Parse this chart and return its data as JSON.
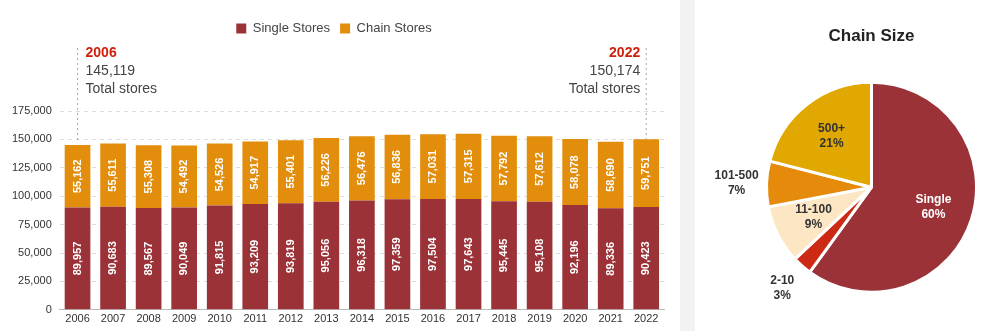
{
  "chart_data": [
    {
      "type": "bar",
      "stacked": true,
      "legend": "top",
      "grid": "y",
      "categories": [
        "2006",
        "2007",
        "2008",
        "2009",
        "2010",
        "2011",
        "2012",
        "2013",
        "2014",
        "2015",
        "2016",
        "2017",
        "2018",
        "2019",
        "2020",
        "2021",
        "2022"
      ],
      "series": [
        {
          "name": "Single Stores",
          "color": "#9b3238",
          "values": [
            89957,
            90683,
            89567,
            90049,
            91815,
            93209,
            93819,
            95056,
            96318,
            97359,
            97504,
            97643,
            95445,
            95108,
            92196,
            89336,
            90423
          ],
          "value_labels": [
            "89,957",
            "90,683",
            "89,567",
            "90,049",
            "91,815",
            "93,209",
            "93,819",
            "95,056",
            "96,318",
            "97,359",
            "97,504",
            "97,643",
            "95,445",
            "95,108",
            "92,196",
            "89,336",
            "90,423"
          ]
        },
        {
          "name": "Chain Stores",
          "color": "#e38d0c",
          "values": [
            55162,
            55611,
            55308,
            54492,
            54526,
            54917,
            55401,
            56226,
            56476,
            56836,
            57031,
            57315,
            57792,
            57612,
            58078,
            58690,
            59751
          ],
          "value_labels": [
            "55,162",
            "55,611",
            "55,308",
            "54,492",
            "54,526",
            "54,917",
            "55,401",
            "56,226",
            "56,476",
            "56,836",
            "57,031",
            "57,315",
            "57,792",
            "57,612",
            "58,078",
            "58,690",
            "59,751"
          ]
        }
      ],
      "ylim": [
        0,
        175000
      ],
      "yticks": [
        {
          "value": 0,
          "label": "0"
        },
        {
          "value": 25000,
          "label": "25,000"
        },
        {
          "value": 50000,
          "label": "50,000"
        },
        {
          "value": 75000,
          "label": "75,000"
        },
        {
          "value": 100000,
          "label": "100,000"
        },
        {
          "value": 125000,
          "label": "125,000"
        },
        {
          "value": 150000,
          "label": "150,000"
        },
        {
          "value": 175000,
          "label": "175,000"
        }
      ],
      "ref_lines": [
        {
          "axis": "x",
          "value": "2006",
          "label": "2006",
          "color": "#aaaaaa",
          "line_style": "dotted"
        },
        {
          "axis": "x",
          "value": "2022",
          "label": "2022",
          "color": "#aaaaaa",
          "line_style": "dotted"
        }
      ],
      "annotations": [
        {
          "text": "145,119\nTotal stores",
          "x": "2006"
        },
        {
          "text": "150,174\nTotal stores",
          "x": "2022"
        }
      ]
    },
    {
      "type": "pie",
      "title": "Chain Size",
      "categories": [
        "Single",
        "2-10",
        "11-100",
        "101-500",
        "500+"
      ],
      "values": [
        60,
        3,
        9,
        7,
        21
      ],
      "value_labels": [
        "60%",
        "3%",
        "9%",
        "7%",
        "21%"
      ],
      "colors": [
        "#9b3238",
        "#cc2a14",
        "#fde6c4",
        "#e58a0a",
        "#e0a800"
      ]
    }
  ]
}
